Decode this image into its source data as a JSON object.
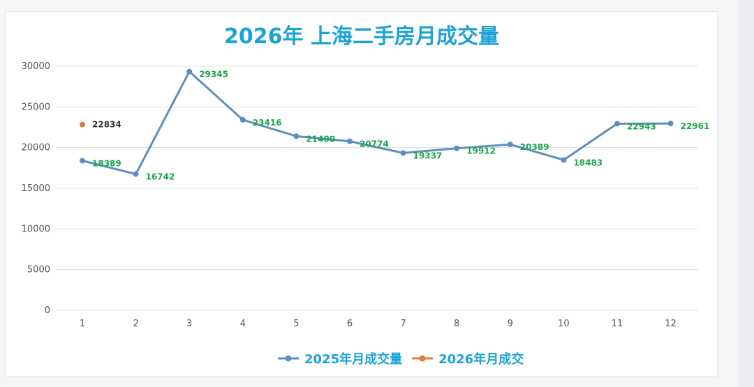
{
  "chart_data": {
    "type": "line",
    "title": "2026年 上海二手房月成交量",
    "xlabel": "",
    "ylabel": "",
    "categories": [
      "1",
      "2",
      "3",
      "4",
      "5",
      "6",
      "7",
      "8",
      "9",
      "10",
      "11",
      "12"
    ],
    "ylim": [
      0,
      30000
    ],
    "yticks": [
      0,
      5000,
      10000,
      15000,
      20000,
      25000,
      30000
    ],
    "grid": true,
    "legend_position": "bottom",
    "series": [
      {
        "name": "2025年月成交量",
        "color": "#5b8fbf",
        "label_color": "#1aa64a",
        "values": [
          18389,
          16742,
          29345,
          23416,
          21400,
          20774,
          19337,
          19912,
          20389,
          18483,
          22943,
          22961
        ]
      },
      {
        "name": "2026年月成交",
        "color": "#e07b39",
        "label_color": "#333333",
        "values": [
          22834,
          null,
          null,
          null,
          null,
          null,
          null,
          null,
          null,
          null,
          null,
          null
        ]
      }
    ]
  },
  "colors": {
    "title": "#1ba3d6",
    "legend_text": "#1ba3d6",
    "grid": "#dddddd"
  }
}
